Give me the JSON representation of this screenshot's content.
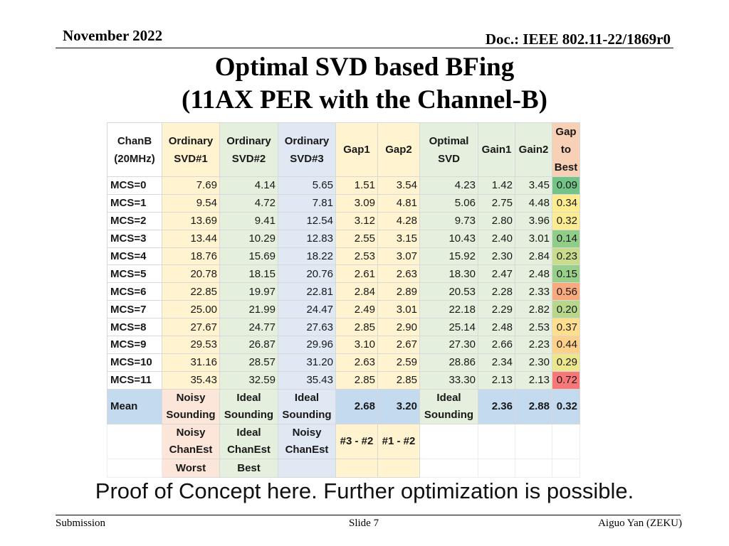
{
  "header": {
    "date": "November 2022",
    "doc_id": "Doc.: IEEE 802.11-22/1869r0"
  },
  "title": {
    "line1": "Optimal SVD based BFing",
    "line2": "(11AX PER with the Channel-B)"
  },
  "table": {
    "headers": [
      "ChanB (20MHz)",
      "Ordinary SVD#1",
      "Ordinary SVD#2",
      "Ordinary SVD#3",
      "Gap1",
      "Gap2",
      "Optimal SVD",
      "Gain1",
      "Gain2",
      "Gap to Best"
    ],
    "rows": [
      {
        "label": "MCS=0",
        "values": [
          "7.69",
          "4.14",
          "5.65",
          "1.51",
          "3.54",
          "4.23",
          "1.42",
          "3.45",
          "0.09"
        ],
        "gap_color": "#63be7b"
      },
      {
        "label": "MCS=1",
        "values": [
          "9.54",
          "4.72",
          "7.81",
          "3.09",
          "4.81",
          "5.06",
          "2.75",
          "4.48",
          "0.34"
        ],
        "gap_color": "#ffeb84"
      },
      {
        "label": "MCS=2",
        "values": [
          "13.69",
          "9.41",
          "12.54",
          "3.12",
          "4.28",
          "9.73",
          "2.80",
          "3.96",
          "0.32"
        ],
        "gap_color": "#fdeb83"
      },
      {
        "label": "MCS=3",
        "values": [
          "13.44",
          "10.29",
          "12.83",
          "2.55",
          "3.15",
          "10.43",
          "2.40",
          "3.01",
          "0.14"
        ],
        "gap_color": "#85c87d"
      },
      {
        "label": "MCS=4",
        "values": [
          "18.76",
          "15.69",
          "18.22",
          "2.53",
          "3.07",
          "15.92",
          "2.30",
          "2.84",
          "0.23"
        ],
        "gap_color": "#c4d980"
      },
      {
        "label": "MCS=5",
        "values": [
          "20.78",
          "18.15",
          "20.76",
          "2.61",
          "2.63",
          "18.30",
          "2.47",
          "2.48",
          "0.15"
        ],
        "gap_color": "#8dca7e"
      },
      {
        "label": "MCS=6",
        "values": [
          "22.85",
          "19.97",
          "22.81",
          "2.84",
          "2.89",
          "20.53",
          "2.28",
          "2.33",
          "0.56"
        ],
        "gap_color": "#f8a070"
      },
      {
        "label": "MCS=7",
        "values": [
          "25.00",
          "21.99",
          "24.47",
          "2.49",
          "3.01",
          "22.18",
          "2.29",
          "2.82",
          "0.20"
        ],
        "gap_color": "#b0d47f"
      },
      {
        "label": "MCS=8",
        "values": [
          "27.67",
          "24.77",
          "27.63",
          "2.85",
          "2.90",
          "25.14",
          "2.48",
          "2.53",
          "0.37"
        ],
        "gap_color": "#ffdc81"
      },
      {
        "label": "MCS=9",
        "values": [
          "29.53",
          "26.87",
          "29.96",
          "3.10",
          "2.67",
          "27.30",
          "2.66",
          "2.23",
          "0.44"
        ],
        "gap_color": "#fdcd7e"
      },
      {
        "label": "MCS=10",
        "values": [
          "31.16",
          "28.57",
          "31.20",
          "2.63",
          "2.59",
          "28.86",
          "2.34",
          "2.30",
          "0.29"
        ],
        "gap_color": "#ebe583"
      },
      {
        "label": "MCS=11",
        "values": [
          "35.43",
          "32.59",
          "35.43",
          "2.85",
          "2.85",
          "33.30",
          "2.13",
          "2.13",
          "0.72"
        ],
        "gap_color": "#f8696b"
      }
    ],
    "mean": {
      "label": "Mean",
      "ord1": "Noisy Sounding",
      "ord2": "Ideal Sounding",
      "ord3": "Ideal Sounding",
      "gap1": "2.68",
      "gap2": "3.20",
      "optimal": "Ideal Sounding",
      "gain1": "2.36",
      "gain2": "2.88",
      "gap_to_best": "0.32"
    },
    "chanest": {
      "ord1": "Noisy ChanEst",
      "ord2": "Ideal ChanEst",
      "ord3": "Noisy ChanEst",
      "gap1": "#3 - #2",
      "gap2": "#1 - #2"
    },
    "quality": {
      "ord1": "Worst",
      "ord2": "Best"
    }
  },
  "proof_text": "Proof of Concept here. Further optimization is possible.",
  "footer": {
    "left": "Submission",
    "center": "Slide 7",
    "right": "Aiguo Yan (ZEKU)"
  }
}
